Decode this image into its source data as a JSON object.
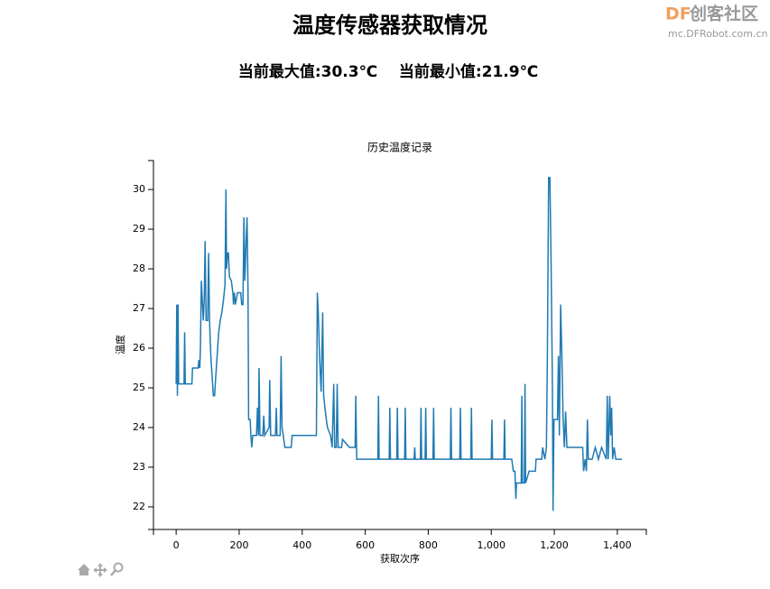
{
  "header": {
    "title": "温度传感器获取情况",
    "stats": [
      "当前最大值:30.3℃",
      "当前最小值:21.9℃"
    ]
  },
  "watermark": {
    "brand": "DF",
    "name": "创客社区",
    "url": "mc.DFRobot.com.cn"
  },
  "chart_data": {
    "type": "line",
    "title": "历史温度记录",
    "x_label": "获取次序",
    "y_label": "温度",
    "xlim": [
      -72,
      1492
    ],
    "ylim": [
      21.43,
      30.73
    ],
    "xticks": [
      0,
      200,
      400,
      600,
      800,
      {
        "value": 1000,
        "label": "1,000"
      },
      {
        "value": 1200,
        "label": "1,200"
      },
      {
        "value": 1400,
        "label": "1,400"
      }
    ],
    "yticks": [
      22,
      23,
      24,
      25,
      26,
      27,
      28,
      29,
      30
    ],
    "series": [
      {
        "name": "温度",
        "color": "#1f7ab3",
        "x": [
          0,
          2,
          4,
          6,
          8,
          25,
          27,
          29,
          50,
          52,
          70,
          72,
          75,
          77,
          80,
          83,
          86,
          89,
          92,
          95,
          100,
          103,
          106,
          110,
          115,
          118,
          122,
          125,
          130,
          135,
          140,
          145,
          150,
          155,
          158,
          160,
          163,
          166,
          169,
          175,
          180,
          182,
          185,
          188,
          195,
          205,
          208,
          212,
          215,
          218,
          222,
          225,
          228,
          230,
          235,
          237,
          240,
          243,
          255,
          258,
          261,
          263,
          266,
          275,
          278,
          281,
          295,
          297,
          300,
          315,
          318,
          320,
          330,
          333,
          336,
          340,
          345,
          365,
          368,
          445,
          448,
          451,
          455,
          460,
          465,
          468,
          475,
          480,
          490,
          495,
          500,
          503,
          508,
          511,
          514,
          525,
          528,
          550,
          568,
          570,
          573,
          640,
          642,
          644,
          676,
          678,
          680,
          700,
          702,
          704,
          725,
          727,
          729,
          755,
          757,
          759,
          775,
          777,
          779,
          790,
          792,
          794,
          815,
          817,
          819,
          870,
          872,
          874,
          900,
          902,
          904,
          935,
          937,
          939,
          1000,
          1002,
          1004,
          1040,
          1042,
          1044,
          1065,
          1070,
          1075,
          1078,
          1080,
          1095,
          1097,
          1099,
          1105,
          1107,
          1109,
          1120,
          1140,
          1142,
          1160,
          1163,
          1170,
          1175,
          1178,
          1182,
          1186,
          1190,
          1194,
          1196,
          1199,
          1210,
          1213,
          1216,
          1220,
          1224,
          1228,
          1232,
          1236,
          1240,
          1290,
          1293,
          1298,
          1302,
          1305,
          1308,
          1320,
          1330,
          1340,
          1350,
          1365,
          1368,
          1371,
          1376,
          1379,
          1382,
          1385,
          1390,
          1395,
          1415
        ],
        "values": [
          25.1,
          27.1,
          24.8,
          27.1,
          25.1,
          25.1,
          26.4,
          25.1,
          25.1,
          25.5,
          25.5,
          25.7,
          25.5,
          26.0,
          27.7,
          27.2,
          26.7,
          27.2,
          28.7,
          26.7,
          26.7,
          28.4,
          26.7,
          25.8,
          25.2,
          24.8,
          24.8,
          25.2,
          25.8,
          26.4,
          26.7,
          26.9,
          27.2,
          27.6,
          30.0,
          28.0,
          28.4,
          28.4,
          27.8,
          27.7,
          27.4,
          27.1,
          27.4,
          27.1,
          27.4,
          27.4,
          27.1,
          27.1,
          29.3,
          27.7,
          28.7,
          29.3,
          27.5,
          24.2,
          24.2,
          23.8,
          23.5,
          23.8,
          23.8,
          24.5,
          23.8,
          25.5,
          23.8,
          23.8,
          24.3,
          23.8,
          24.0,
          25.2,
          23.8,
          23.8,
          24.5,
          23.8,
          23.8,
          25.8,
          24.0,
          23.8,
          23.5,
          23.5,
          23.8,
          23.8,
          27.4,
          26.9,
          25.8,
          24.9,
          26.9,
          24.8,
          24.3,
          24.0,
          23.8,
          23.5,
          25.1,
          23.5,
          23.5,
          25.1,
          23.5,
          23.5,
          23.7,
          23.5,
          23.5,
          24.8,
          23.2,
          23.2,
          24.8,
          23.2,
          23.2,
          24.5,
          23.2,
          23.2,
          24.5,
          23.2,
          23.2,
          24.5,
          23.2,
          23.2,
          23.5,
          23.2,
          23.2,
          24.5,
          23.2,
          23.2,
          24.5,
          23.2,
          23.2,
          24.5,
          23.2,
          23.2,
          24.5,
          23.2,
          23.2,
          24.5,
          23.2,
          23.2,
          24.5,
          23.2,
          23.2,
          24.2,
          23.2,
          23.2,
          24.2,
          23.2,
          23.2,
          22.9,
          22.9,
          22.2,
          22.6,
          22.6,
          24.8,
          22.6,
          22.6,
          25.1,
          22.6,
          22.9,
          22.9,
          23.2,
          23.2,
          23.5,
          23.2,
          23.5,
          25.8,
          30.3,
          30.3,
          28.0,
          25.0,
          21.9,
          24.2,
          24.2,
          25.8,
          23.8,
          27.1,
          25.8,
          24.2,
          23.5,
          24.4,
          23.5,
          23.5,
          22.9,
          23.2,
          22.9,
          24.2,
          23.2,
          23.2,
          23.5,
          23.2,
          23.5,
          23.2,
          24.8,
          23.2,
          24.8,
          23.8,
          24.5,
          23.2,
          23.5,
          23.2,
          23.2
        ]
      }
    ]
  }
}
